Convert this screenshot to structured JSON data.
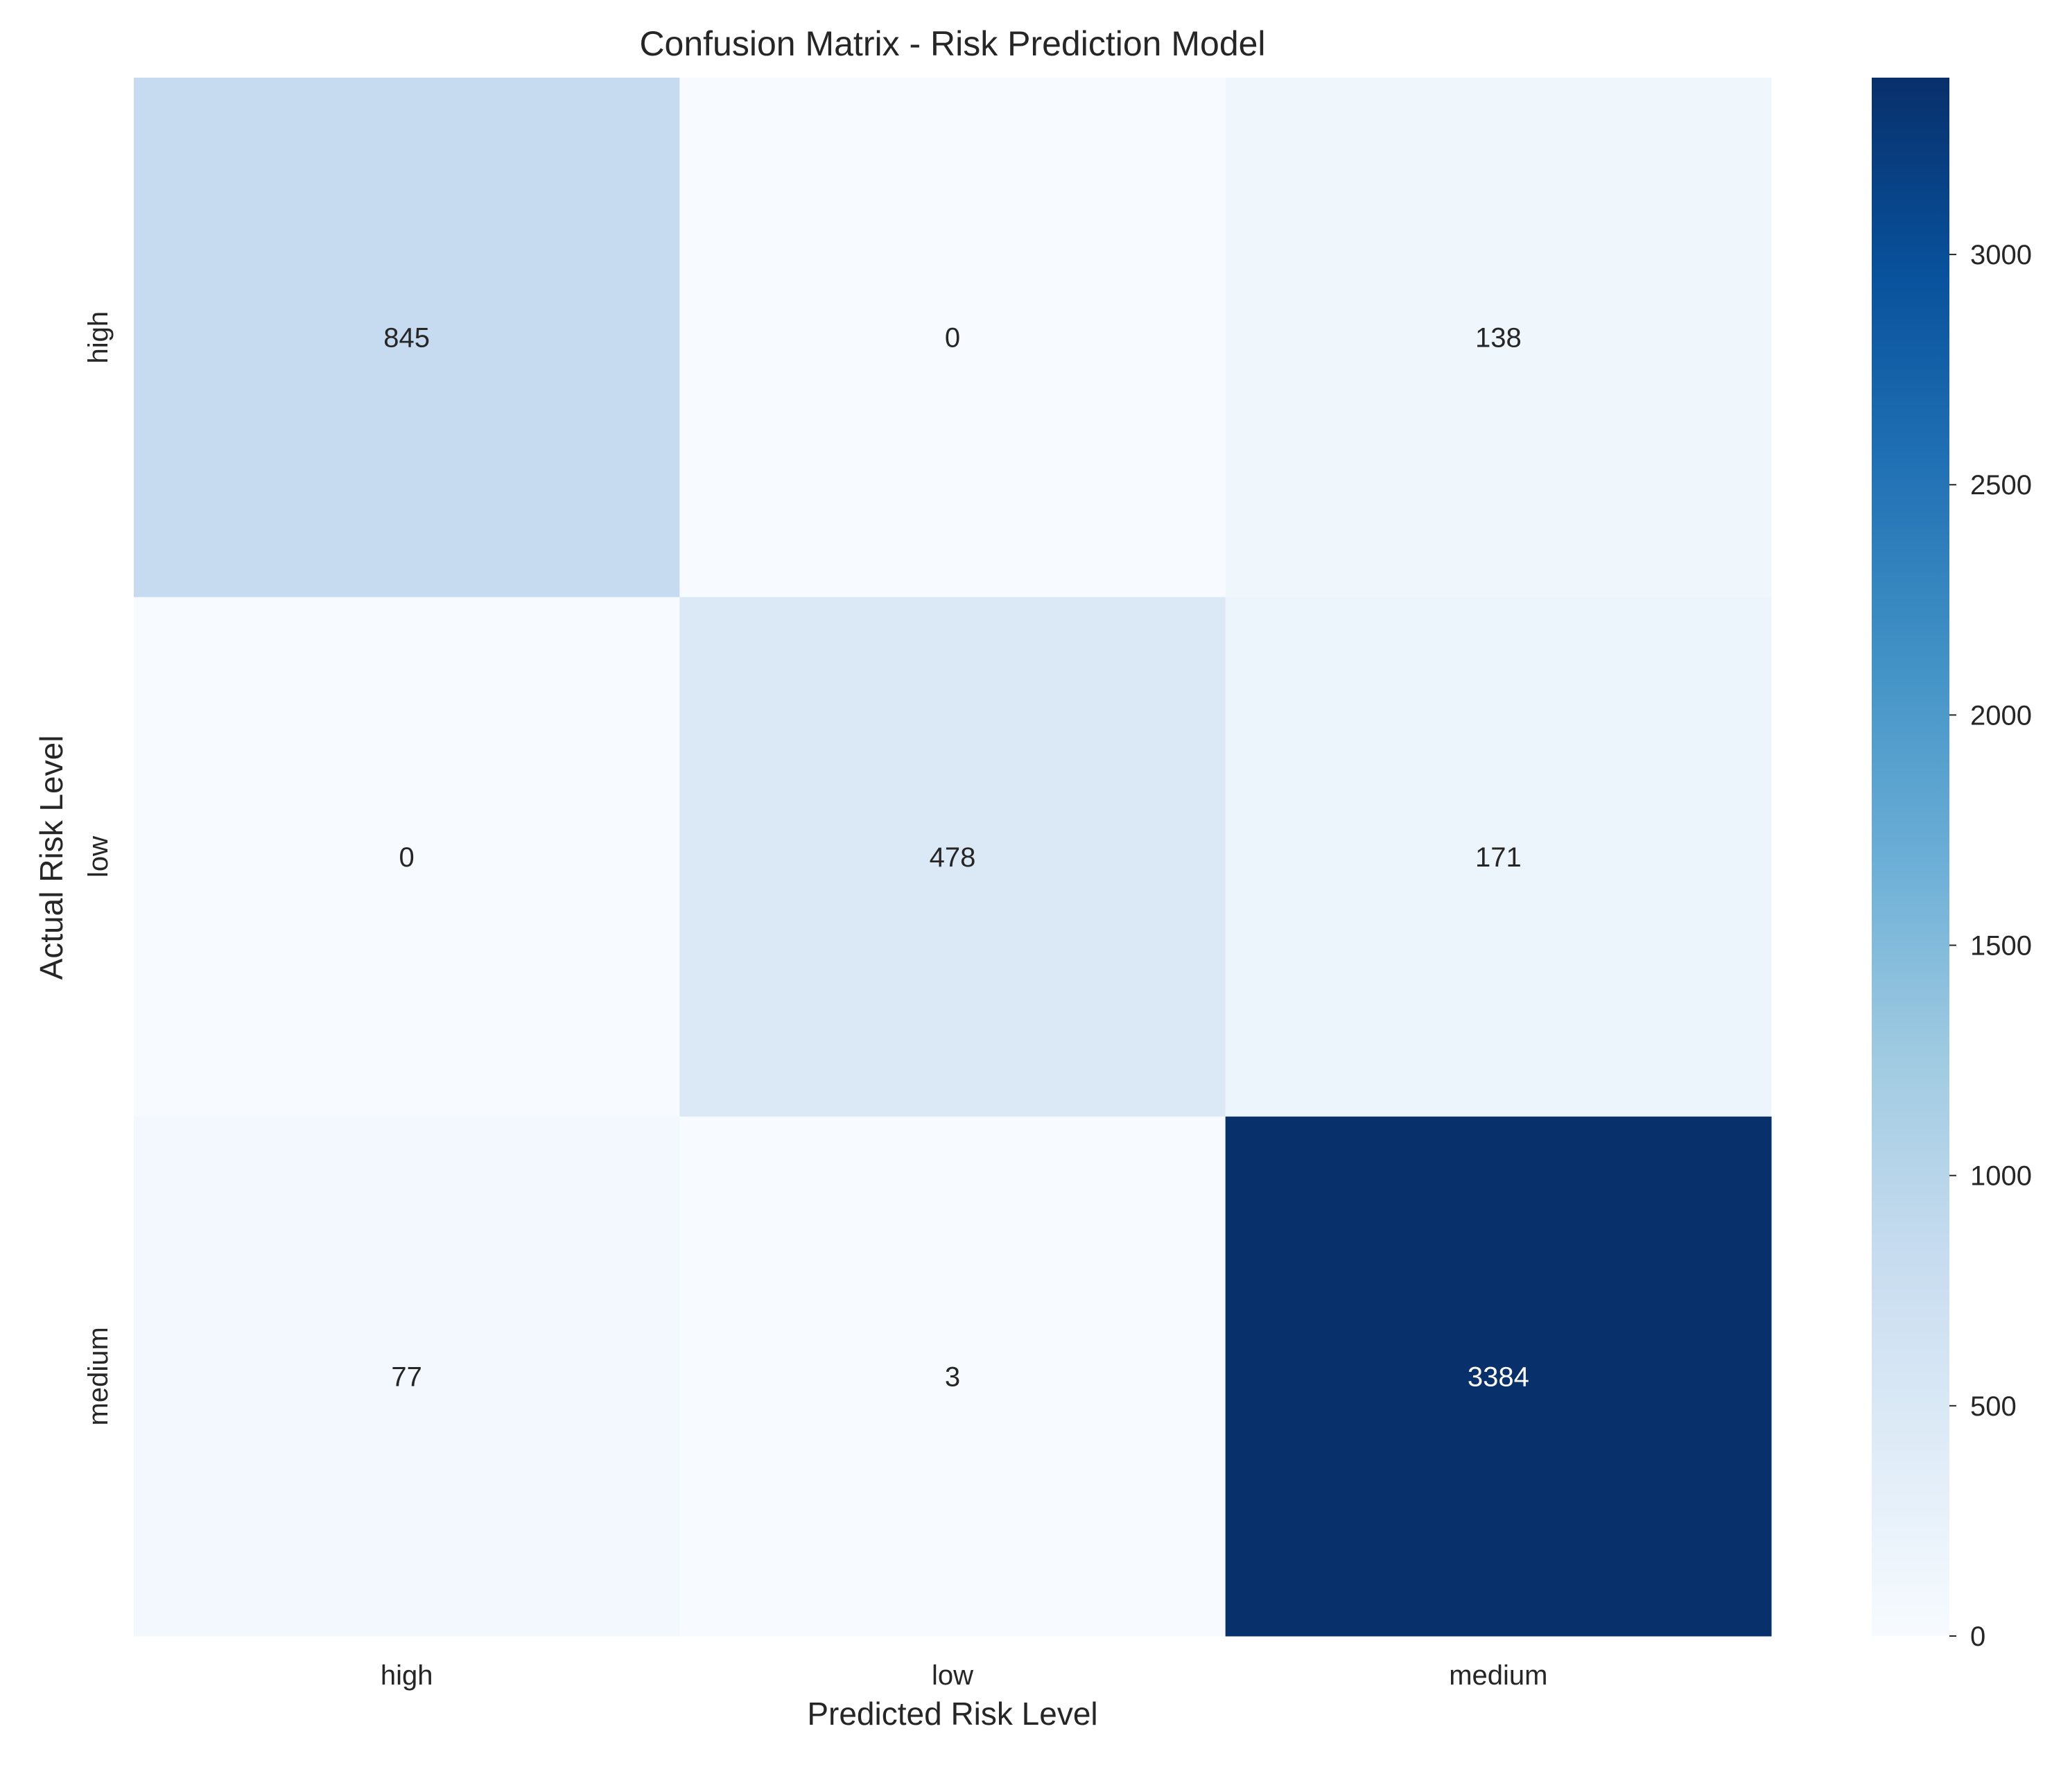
{
  "chart_data": {
    "type": "heatmap",
    "title": "Confusion Matrix - Risk Prediction Model",
    "xlabel": "Predicted Risk Level",
    "ylabel": "Actual Risk Level",
    "x_categories": [
      "high",
      "low",
      "medium"
    ],
    "y_categories": [
      "high",
      "low",
      "medium"
    ],
    "values": [
      [
        845,
        0,
        138
      ],
      [
        0,
        478,
        171
      ],
      [
        77,
        3,
        3384
      ]
    ],
    "colormap": "Blues",
    "colormap_stops": [
      "#f7fbff",
      "#deebf7",
      "#c6dbef",
      "#9ecae1",
      "#6baed6",
      "#4292c6",
      "#2171b5",
      "#08519c",
      "#08306b"
    ],
    "colorbar": {
      "min": 0,
      "max": 3384,
      "ticks": [
        0,
        500,
        1000,
        1500,
        2000,
        2500,
        3000
      ]
    },
    "annotations": "cell counts",
    "grid": false,
    "legend": "colorbar right"
  }
}
